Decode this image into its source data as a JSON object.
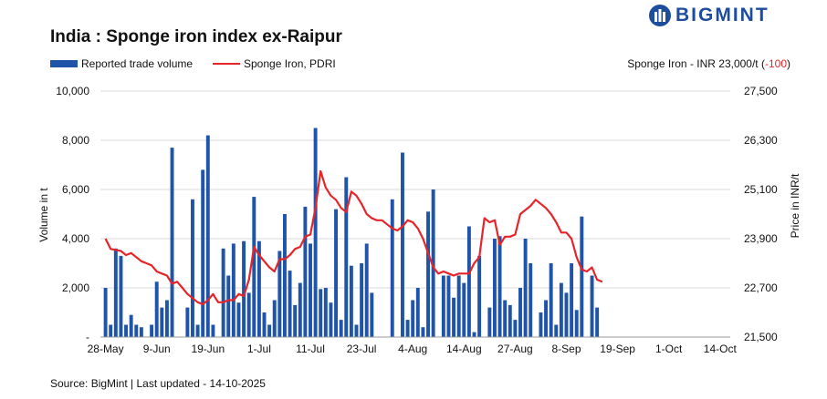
{
  "title": "India : Sponge iron index ex-Raipur",
  "brand": {
    "name": "BIGMINT",
    "color": "#1d4d9c"
  },
  "price_note": {
    "prefix": "Sponge Iron - INR 23,000/t (",
    "change": "-100",
    "suffix": ")"
  },
  "source": "Source: BigMint | Last updated - 14-10-2025",
  "chart_data": {
    "type": "bar+line",
    "title": "India : Sponge iron index ex-Raipur",
    "xlabel": "",
    "ylabel_left": "Volume in t",
    "ylabel_right": "Price in INR/t",
    "ylim_left": [
      0,
      10000
    ],
    "ylim_right": [
      21500,
      27500
    ],
    "y_ticks_left": [
      "-",
      "2,000",
      "4,000",
      "6,000",
      "8,000",
      "10,000"
    ],
    "y_ticks_right": [
      "21,500",
      "22,700",
      "23,900",
      "25,100",
      "26,300",
      "27,500"
    ],
    "x_labels": [
      "28-May",
      "9-Jun",
      "19-Jun",
      "1-Jul",
      "11-Jul",
      "23-Jul",
      "4-Aug",
      "14-Aug",
      "27-Aug",
      "8-Sep",
      "19-Sep",
      "1-Oct",
      "14-Oct"
    ],
    "x_label_positions": [
      0,
      10,
      20,
      30,
      40,
      50,
      60,
      70,
      80,
      90,
      100,
      110,
      120
    ],
    "colors": {
      "bars": "#1f54a8",
      "line": "#e5252a"
    },
    "series": [
      {
        "name": "Reported trade volume",
        "type": "bar",
        "values": [
          2000,
          500,
          3600,
          3300,
          500,
          900,
          500,
          400,
          null,
          500,
          2250,
          1200,
          1500,
          7700,
          null,
          null,
          1200,
          5600,
          500,
          6800,
          8200,
          500,
          null,
          3600,
          2500,
          3800,
          1400,
          3900,
          1800,
          5700,
          3900,
          1000,
          500,
          1500,
          3500,
          5000,
          2700,
          1300,
          2200,
          5300,
          3800,
          8500,
          1950,
          2000,
          1400,
          5200,
          700,
          6500,
          2900,
          500,
          3000,
          3800,
          1800,
          null,
          null,
          null,
          5600,
          null,
          7500,
          700,
          1500,
          2000,
          400,
          5100,
          6000,
          null,
          2500,
          2500,
          1600,
          2500,
          2200,
          4500,
          200,
          3300,
          null,
          1200,
          4000,
          4100,
          1500,
          1300,
          700,
          2000,
          4000,
          3000,
          null,
          1000,
          1500,
          3000,
          500,
          2200,
          1800,
          3000,
          1100,
          4900,
          null,
          2500,
          1200
        ],
        "positions": [
          0,
          1,
          2,
          3,
          4,
          5,
          6,
          7,
          8,
          9,
          10,
          11,
          12,
          13,
          14,
          15,
          16,
          17,
          18,
          19,
          20,
          21,
          22,
          23,
          24,
          25,
          26,
          27,
          28,
          29,
          30,
          31,
          32,
          33,
          34,
          35,
          36,
          37,
          38,
          39,
          40,
          41,
          42,
          43,
          44,
          45,
          46,
          47,
          48,
          49,
          50,
          51,
          52,
          53,
          54,
          55,
          56,
          57,
          58,
          59,
          60,
          61,
          62,
          63,
          64,
          65,
          66,
          67,
          68,
          69,
          70,
          71,
          72,
          73,
          74,
          75,
          76,
          77,
          78,
          79,
          80,
          81,
          82,
          83,
          84,
          85,
          86,
          87,
          88,
          89,
          90,
          91,
          92,
          93,
          94,
          95,
          96
        ]
      },
      {
        "name": "Sponge Iron, PDRI",
        "type": "line",
        "points": [
          [
            0,
            23900
          ],
          [
            1,
            23650
          ],
          [
            3,
            23600
          ],
          [
            4,
            23500
          ],
          [
            5,
            23550
          ],
          [
            7,
            23350
          ],
          [
            8,
            23300
          ],
          [
            9,
            23250
          ],
          [
            10,
            23100
          ],
          [
            11,
            23050
          ],
          [
            12,
            23000
          ],
          [
            13,
            22800
          ],
          [
            14,
            22850
          ],
          [
            15,
            22700
          ],
          [
            16,
            22550
          ],
          [
            17,
            22450
          ],
          [
            18,
            22350
          ],
          [
            19,
            22300
          ],
          [
            20,
            22400
          ],
          [
            21,
            22550
          ],
          [
            22,
            22350
          ],
          [
            23,
            22350
          ],
          [
            24,
            22400
          ],
          [
            25,
            22400
          ],
          [
            26,
            22550
          ],
          [
            27,
            22500
          ],
          [
            28,
            22900
          ],
          [
            29,
            23700
          ],
          [
            30,
            23500
          ],
          [
            31,
            23350
          ],
          [
            32,
            23200
          ],
          [
            33,
            23100
          ],
          [
            34,
            23400
          ],
          [
            35,
            23400
          ],
          [
            36,
            23500
          ],
          [
            37,
            23650
          ],
          [
            38,
            23700
          ],
          [
            39,
            23950
          ],
          [
            40,
            24000
          ],
          [
            41,
            24650
          ],
          [
            42,
            25550
          ],
          [
            43,
            25150
          ],
          [
            44,
            24950
          ],
          [
            45,
            24850
          ],
          [
            46,
            24650
          ],
          [
            47,
            24550
          ],
          [
            48,
            25050
          ],
          [
            49,
            24950
          ],
          [
            50,
            24750
          ],
          [
            51,
            24500
          ],
          [
            52,
            24400
          ],
          [
            53,
            24350
          ],
          [
            54,
            24350
          ],
          [
            55,
            24250
          ],
          [
            56,
            24150
          ],
          [
            57,
            24100
          ],
          [
            58,
            24200
          ],
          [
            59,
            24350
          ],
          [
            60,
            24300
          ],
          [
            61,
            24150
          ],
          [
            62,
            23900
          ],
          [
            63,
            23550
          ],
          [
            64,
            23200
          ],
          [
            65,
            23050
          ],
          [
            66,
            23100
          ],
          [
            67,
            23050
          ],
          [
            68,
            23000
          ],
          [
            69,
            23050
          ],
          [
            70,
            23050
          ],
          [
            71,
            23050
          ],
          [
            72,
            23300
          ],
          [
            73,
            23450
          ],
          [
            74,
            24400
          ],
          [
            75,
            24300
          ],
          [
            76,
            24350
          ],
          [
            77,
            23750
          ],
          [
            78,
            23950
          ],
          [
            79,
            23950
          ],
          [
            80,
            24000
          ],
          [
            81,
            24500
          ],
          [
            82,
            24600
          ],
          [
            83,
            24700
          ],
          [
            84,
            24850
          ],
          [
            85,
            24750
          ],
          [
            86,
            24650
          ],
          [
            87,
            24500
          ],
          [
            88,
            24300
          ],
          [
            89,
            24050
          ],
          [
            90,
            24050
          ],
          [
            91,
            23900
          ],
          [
            92,
            23450
          ],
          [
            93,
            23150
          ],
          [
            94,
            23100
          ],
          [
            95,
            23200
          ],
          [
            96,
            22900
          ],
          [
            97,
            22850
          ]
        ]
      }
    ],
    "legend": [
      "Reported trade volume",
      "Sponge Iron, PDRI"
    ]
  }
}
